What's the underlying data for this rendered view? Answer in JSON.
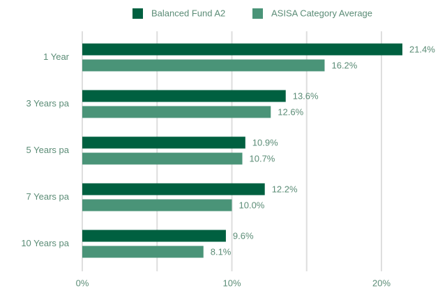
{
  "chart_data": {
    "type": "bar",
    "orientation": "horizontal",
    "categories": [
      "1 Year",
      "3 Years pa",
      "5 Years pa",
      "7 Years pa",
      "10 Years pa"
    ],
    "series": [
      {
        "name": "Balanced Fund A2",
        "color": "#006040",
        "values": [
          21.4,
          13.6,
          10.9,
          12.2,
          9.6
        ],
        "value_labels": [
          "21.4%",
          "13.6%",
          "10.9%",
          "12.2%",
          "9.6%"
        ]
      },
      {
        "name": "ASISA Category Average",
        "color": "#4a9478",
        "values": [
          16.2,
          12.6,
          10.7,
          10.0,
          8.1
        ],
        "value_labels": [
          "16.2%",
          "12.6%",
          "10.7%",
          "10.0%",
          "8.1%"
        ]
      }
    ],
    "xlim": [
      0,
      24
    ],
    "xticks": [
      {
        "value": 0,
        "label": "0%"
      },
      {
        "value": 10,
        "label": "10%"
      },
      {
        "value": 20,
        "label": "20%"
      }
    ],
    "minor_xticks": [
      5,
      15
    ],
    "grid": true,
    "legend": "top"
  }
}
